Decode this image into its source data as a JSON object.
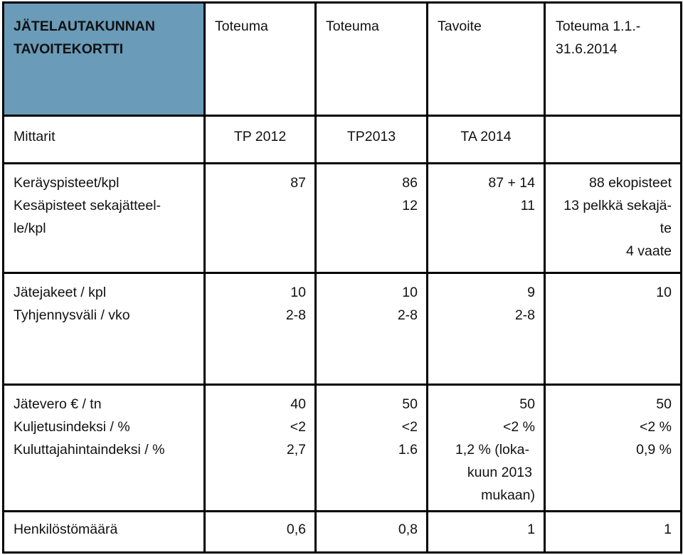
{
  "header": {
    "title_line1": "JÄTELAUTAKUNNAN",
    "title_line2": "TAVOITEKORTTI",
    "col2": "Toteuma",
    "col3": "Toteuma",
    "col4": "Tavoite",
    "col5_line1": "Toteuma 1.1.-",
    "col5_line2": "31.6.2014",
    "accent_color": "#6a9bb8"
  },
  "subheader": {
    "label": "Mittarit",
    "col2": "TP 2012",
    "col3": "TP2013",
    "col4": "TA 2014",
    "col5": ""
  },
  "groups": [
    {
      "labels": [
        "Keräyspisteet/kpl",
        "Kesäpisteet sekajätteel-",
        "le/kpl"
      ],
      "col2": [
        "87"
      ],
      "col3": [
        "86",
        "12"
      ],
      "col4": [
        "87 + 14",
        "11"
      ],
      "col5": [
        "88 ekopisteet",
        "13 pelkkä sekajä-",
        "te",
        "4 vaate"
      ]
    },
    {
      "labels": [
        "Jätejakeet / kpl",
        "Tyhjennysväli / vko"
      ],
      "col2": [
        "10",
        "2-8"
      ],
      "col3": [
        "10",
        "2-8"
      ],
      "col4": [
        "9",
        "2-8"
      ],
      "col5": [
        "10"
      ]
    },
    {
      "labels": [
        "Jätevero € / tn",
        "Kuljetusindeksi / %",
        "Kuluttajahintaindeksi / %"
      ],
      "col2": [
        "40",
        "<2",
        "2,7"
      ],
      "col3": [
        "50",
        "<2",
        "1.6"
      ],
      "col4": [
        "50",
        "<2 %",
        "1,2 % (loka-",
        "kuun 2013",
        "mukaan)"
      ],
      "col5": [
        "50",
        "<2 %",
        "0,9 %"
      ]
    }
  ],
  "last_row": {
    "label": "Henkilöstömäärä",
    "col2": "0,6",
    "col3": "0,8",
    "col4": "1",
    "col5": "1"
  }
}
